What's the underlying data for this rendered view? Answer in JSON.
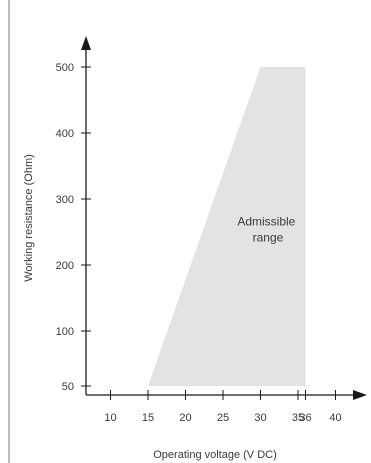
{
  "chart_data": {
    "type": "area",
    "title": "",
    "xlabel": "Operating voltage  (V DC)",
    "ylabel": "Working resistance  (Ohm)",
    "xlim": [
      7,
      42
    ],
    "ylim": [
      45,
      540
    ],
    "x_ticks": [
      {
        "value": 10,
        "label": "10"
      },
      {
        "value": 15,
        "label": "15"
      },
      {
        "value": 20,
        "label": "20"
      },
      {
        "value": 25,
        "label": "25"
      },
      {
        "value": 30,
        "label": "30"
      },
      {
        "value": 35,
        "label": "35"
      },
      {
        "value": 36,
        "label": "36"
      },
      {
        "value": 40,
        "label": "40"
      }
    ],
    "y_ticks": [
      {
        "value": 50,
        "label": "50"
      },
      {
        "value": 100,
        "label": "100"
      },
      {
        "value": 200,
        "label": "200"
      },
      {
        "value": 300,
        "label": "300"
      },
      {
        "value": 400,
        "label": "400"
      },
      {
        "value": 500,
        "label": "500"
      }
    ],
    "region": {
      "name": "Admissible range",
      "label_lines": [
        "Admissible",
        "range"
      ],
      "label_position": [
        31,
        260
      ],
      "color": "#e3e3e3",
      "points": [
        [
          15,
          50
        ],
        [
          30,
          500
        ],
        [
          36,
          500
        ],
        [
          36,
          50
        ]
      ]
    },
    "grid": false,
    "legend": "none"
  }
}
